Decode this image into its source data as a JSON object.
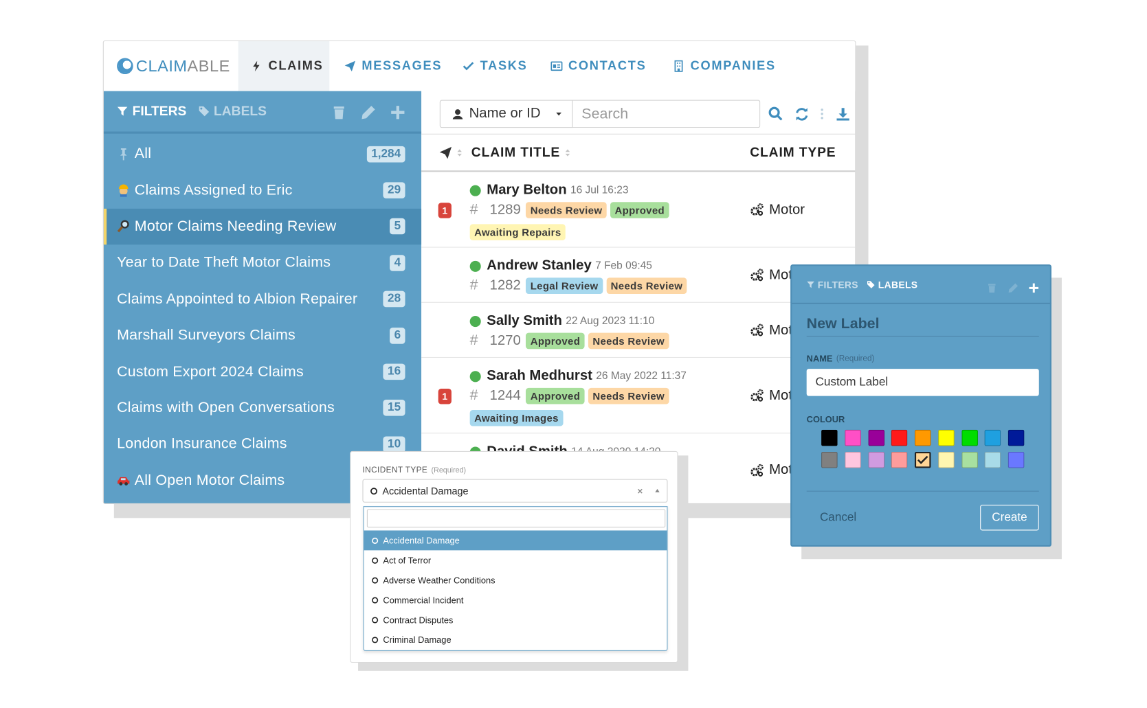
{
  "brand": {
    "parts": [
      "CLAIM",
      "ABLE"
    ]
  },
  "nav": [
    "CLAIMS",
    "MESSAGES",
    "TASKS",
    "CONTACTS",
    "COMPANIES"
  ],
  "sidebar": {
    "tabs": [
      "FILTERS",
      "LABELS"
    ],
    "filters": [
      {
        "label": "All",
        "count": "1,284"
      },
      {
        "label": "Claims Assigned to Eric",
        "count": "29"
      },
      {
        "label": "Motor Claims Needing Review",
        "count": "5"
      },
      {
        "label": "Year to Date Theft Motor Claims",
        "count": "4"
      },
      {
        "label": "Claims Appointed to Albion Repairer",
        "count": "28"
      },
      {
        "label": "Marshall Surveyors Claims",
        "count": "6"
      },
      {
        "label": "Custom Export 2024 Claims",
        "count": "16"
      },
      {
        "label": "Claims with Open Conversations",
        "count": "15"
      },
      {
        "label": "London Insurance Claims",
        "count": "10"
      },
      {
        "label": "All Open Motor Claims",
        "count": null
      }
    ],
    "selected": 2
  },
  "toolbar": {
    "search_field": "Name or ID",
    "search_placeholder": "Search"
  },
  "table": {
    "headers": [
      "CLAIM TITLE",
      "CLAIM TYPE"
    ],
    "id_prefix": "#",
    "rows": [
      {
        "name": "Mary Belton",
        "date": "16 Jul 16:23",
        "id": "1289",
        "badge": "1",
        "type": "Motor",
        "tags": [
          {
            "text": "Needs Review",
            "color": "#fdd7a6"
          },
          {
            "text": "Approved",
            "color": "#a8df9c"
          },
          {
            "text": "Awaiting Repairs",
            "color": "#fff5b3"
          }
        ]
      },
      {
        "name": "Andrew Stanley",
        "date": "7 Feb 09:45",
        "id": "1282",
        "badge": null,
        "type": "Motor",
        "tags": [
          {
            "text": "Legal Review",
            "color": "#a6d8ee"
          },
          {
            "text": "Needs Review",
            "color": "#fdd7a6"
          }
        ]
      },
      {
        "name": "Sally Smith",
        "date": "22 Aug 2023 11:10",
        "id": "1270",
        "badge": null,
        "type": "Motor",
        "tags": [
          {
            "text": "Approved",
            "color": "#a8df9c"
          },
          {
            "text": "Needs Review",
            "color": "#fdd7a6"
          }
        ]
      },
      {
        "name": "Sarah Medhurst",
        "date": "26 May 2022 11:37",
        "id": "1244",
        "badge": "1",
        "type": "Motor",
        "tags": [
          {
            "text": "Approved",
            "color": "#a8df9c"
          },
          {
            "text": "Needs Review",
            "color": "#fdd7a6"
          },
          {
            "text": "Awaiting Images",
            "color": "#a6d8ee"
          }
        ]
      },
      {
        "name": "David Smith",
        "date": "14 Aug 2020 14:20",
        "id": null,
        "badge": null,
        "type": "Motor",
        "tags": []
      }
    ]
  },
  "incident_popup": {
    "label": "INCIDENT TYPE",
    "hint": "(Required)",
    "selected": "Accidental Damage",
    "options": [
      "Accidental Damage",
      "Act of Terror",
      "Adverse Weather Conditions",
      "Commercial Incident",
      "Contract Disputes",
      "Criminal Damage"
    ],
    "highlighted": 0
  },
  "label_popup": {
    "tabs": [
      "FILTERS",
      "LABELS"
    ],
    "title": "New Label",
    "name_label": "NAME",
    "hint": "(Required)",
    "name_value": "Custom Label",
    "colour_label": "COLOUR",
    "swatches": [
      "#000000",
      "#ff4fc6",
      "#990099",
      "#ff1a1a",
      "#ff9900",
      "#ffff00",
      "#00dd00",
      "#1fa0e0",
      "#001a99",
      "#808080",
      "#ffc6df",
      "#d19be0",
      "#ff9c9c",
      "#ffd596",
      "#fff6b0",
      "#a8e0a0",
      "#a8dbe8",
      "#6a78ff"
    ],
    "selected_swatch": 13,
    "cancel": "Cancel",
    "create": "Create"
  }
}
